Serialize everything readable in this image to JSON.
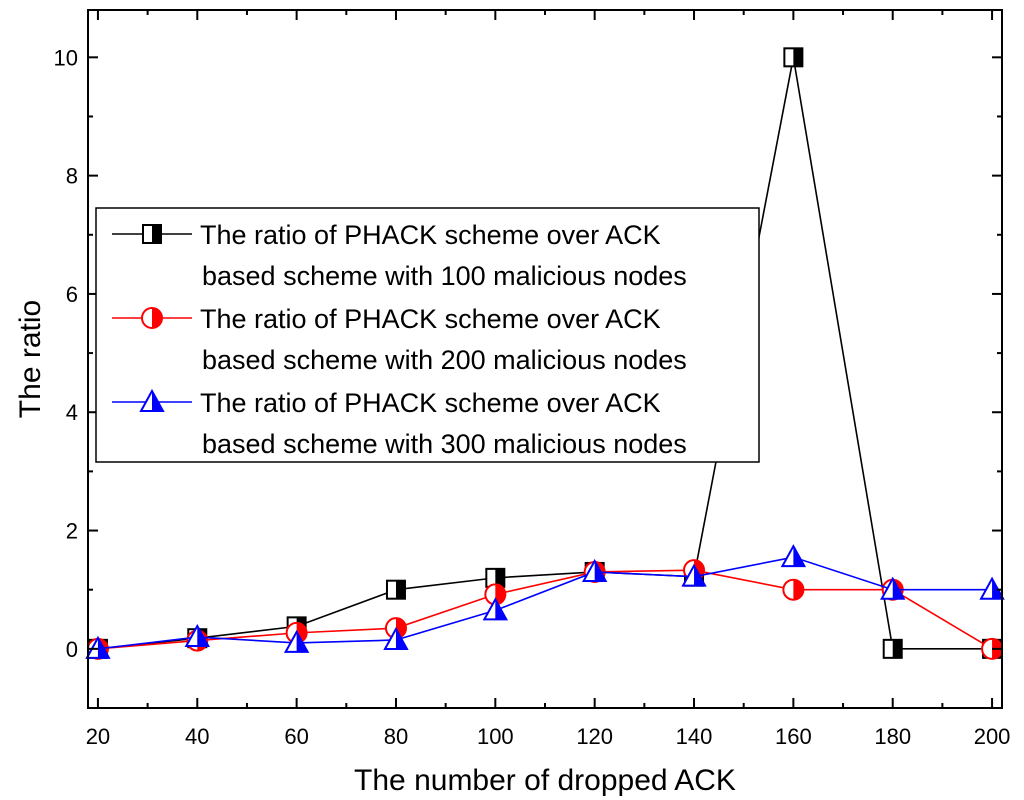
{
  "chart_data": {
    "type": "line",
    "title": "",
    "xlabel": "The number of dropped ACK",
    "ylabel": "The ratio",
    "xlim": [
      18,
      202
    ],
    "ylim": [
      -1,
      10.8
    ],
    "xticks": [
      20,
      40,
      60,
      80,
      100,
      120,
      140,
      160,
      180,
      200
    ],
    "yticks": [
      0,
      2,
      4,
      6,
      8,
      10
    ],
    "x": [
      20,
      40,
      60,
      80,
      100,
      120,
      140,
      160,
      180,
      200
    ],
    "grid": false,
    "legend_position": "center-left",
    "series": [
      {
        "name": "The ratio of PHACK scheme over ACK based scheme with 100 malicious nodes",
        "legend_lines": [
          "The ratio of PHACK scheme over ACK",
          "based scheme with 100 malicious nodes"
        ],
        "color": "#000000",
        "marker": "half-square",
        "values": [
          0,
          0.18,
          0.38,
          1.0,
          1.2,
          1.3,
          1.22,
          10.0,
          0,
          0
        ]
      },
      {
        "name": "The ratio of PHACK scheme over ACK based scheme with 200 malicious nodes",
        "legend_lines": [
          "The ratio of PHACK scheme over ACK",
          "based scheme with 200 malicious nodes"
        ],
        "color": "#ff0000",
        "marker": "half-circle",
        "values": [
          0,
          0.14,
          0.27,
          0.35,
          0.92,
          1.3,
          1.33,
          1.0,
          1.0,
          0
        ]
      },
      {
        "name": "The ratio of PHACK scheme over ACK based scheme with 300 malicious nodes",
        "legend_lines": [
          "The ratio of PHACK scheme over ACK",
          "based scheme with 300 malicious nodes"
        ],
        "color": "#0000ff",
        "marker": "half-triangle",
        "values": [
          0,
          0.2,
          0.1,
          0.15,
          0.65,
          1.3,
          1.22,
          1.55,
          1.0,
          1.0
        ]
      }
    ]
  }
}
